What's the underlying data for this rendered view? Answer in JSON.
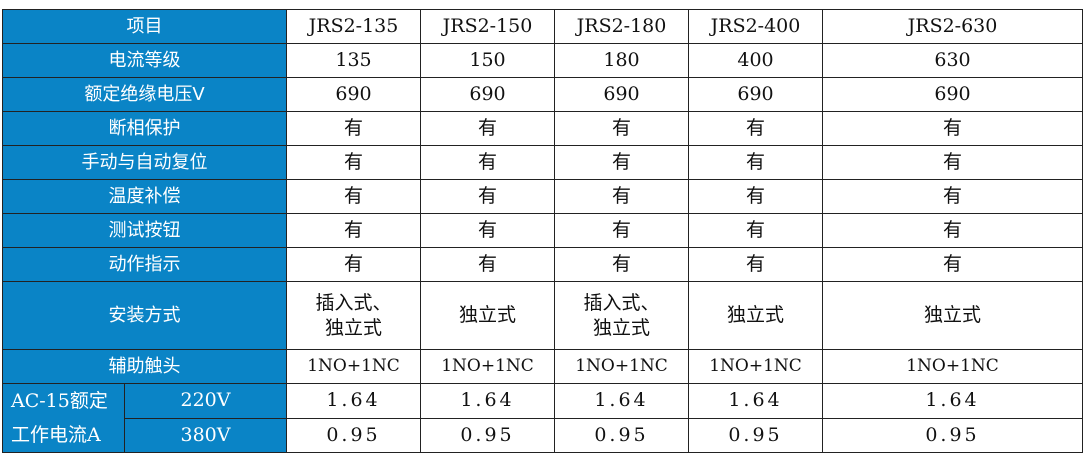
{
  "header": {
    "label": "项目",
    "models": [
      "JRS2-135",
      "JRS2-150",
      "JRS2-180",
      "JRS2-400",
      "JRS2-630"
    ]
  },
  "rows": [
    {
      "label": "电流等级",
      "values": [
        "135",
        "150",
        "180",
        "400",
        "630"
      ]
    },
    {
      "label": "额定绝缘电压V",
      "values": [
        "690",
        "690",
        "690",
        "690",
        "690"
      ]
    },
    {
      "label": "断相保护",
      "values": [
        "有",
        "有",
        "有",
        "有",
        "有"
      ]
    },
    {
      "label": "手动与自动复位",
      "values": [
        "有",
        "有",
        "有",
        "有",
        "有"
      ]
    },
    {
      "label": "温度补偿",
      "values": [
        "有",
        "有",
        "有",
        "有",
        "有"
      ]
    },
    {
      "label": "测试按钮",
      "values": [
        "有",
        "有",
        "有",
        "有",
        "有"
      ]
    },
    {
      "label": "动作指示",
      "values": [
        "有",
        "有",
        "有",
        "有",
        "有"
      ]
    },
    {
      "label": "安装方式",
      "values": [
        "插入式、\n独立式",
        "独立式",
        "插入式、\n独立式",
        "独立式",
        "独立式"
      ]
    },
    {
      "label": "辅助触头",
      "values": [
        "1NO+1NC",
        "1NO+1NC",
        "1NO+1NC",
        "1NO+1NC",
        "1NO+1NC"
      ]
    }
  ],
  "ac15": {
    "label_line1": "AC-15额定",
    "label_line2": "工作电流A",
    "rows": [
      {
        "voltage": "220V",
        "values": [
          "1.64",
          "1.64",
          "1.64",
          "1.64",
          "1.64"
        ]
      },
      {
        "voltage": "380V",
        "values": [
          "0.95",
          "0.95",
          "0.95",
          "0.95",
          "0.95"
        ]
      }
    ]
  },
  "colors": {
    "header_bg": "#0a84c6"
  }
}
